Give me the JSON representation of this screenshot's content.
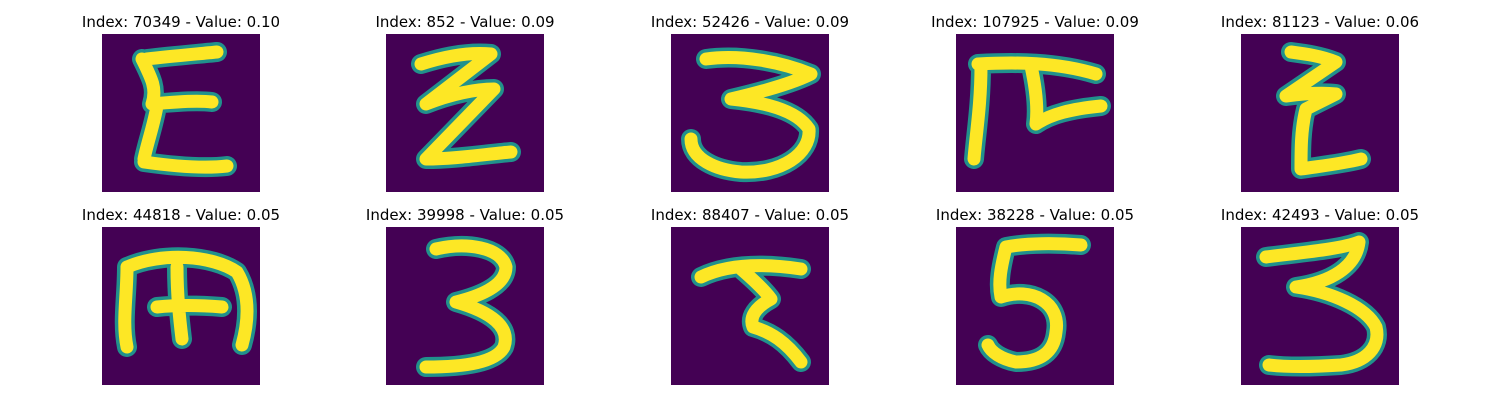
{
  "colors": {
    "background": "#440154",
    "stroke": "#fde725",
    "edge": "#21918c"
  },
  "panels": [
    {
      "index": "70349",
      "value": "0.10",
      "title": "Index: 70349 - Value: 0.10",
      "glyph": "sigma-like handwritten character"
    },
    {
      "index": "852",
      "value": "0.09",
      "title": "Index: 852 - Value: 0.09",
      "glyph": "zigzag handwritten character"
    },
    {
      "index": "52426",
      "value": "0.09",
      "title": "Index: 52426 - Value: 0.09",
      "glyph": "handwritten 3"
    },
    {
      "index": "107925",
      "value": "0.09",
      "title": "Index: 107925 - Value: 0.09",
      "glyph": "pi-like handwritten character"
    },
    {
      "index": "81123",
      "value": "0.06",
      "title": "Index: 81123 - Value: 0.06",
      "glyph": "zigzag handwritten character"
    },
    {
      "index": "44818",
      "value": "0.05",
      "title": "Index: 44818 - Value: 0.05",
      "glyph": "m-like handwritten character"
    },
    {
      "index": "39998",
      "value": "0.05",
      "title": "Index: 39998 - Value: 0.05",
      "glyph": "handwritten 3"
    },
    {
      "index": "88407",
      "value": "0.05",
      "title": "Index: 88407 - Value: 0.05",
      "glyph": "handwritten character with flat top"
    },
    {
      "index": "38228",
      "value": "0.05",
      "title": "Index: 38228 - Value: 0.05",
      "glyph": "handwritten 5"
    },
    {
      "index": "42493",
      "value": "0.05",
      "title": "Index: 42493 - Value: 0.05",
      "glyph": "handwritten 3"
    }
  ]
}
